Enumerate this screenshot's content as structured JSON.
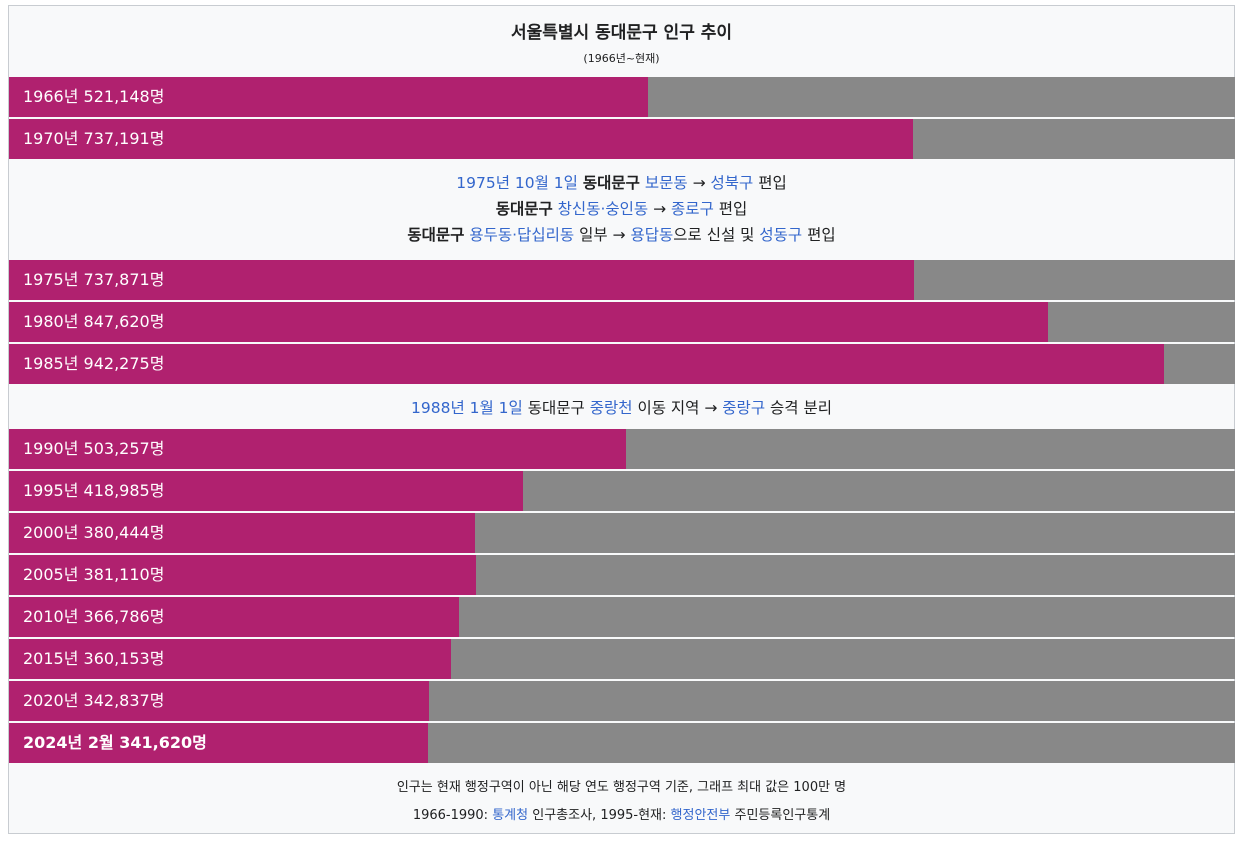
{
  "title": "서울특별시 동대문구 인구 추이",
  "subtitle": "(1966년~현재)",
  "chart_data": {
    "type": "bar",
    "orientation": "horizontal",
    "title": "서울특별시 동대문구 인구 추이",
    "subtitle": "(1966년~현재)",
    "xlim": [
      0,
      1000000
    ],
    "colors": {
      "bar": "#b0216f",
      "track": "#888888"
    },
    "categories": [
      "1966년",
      "1970년",
      "1975년",
      "1980년",
      "1985년",
      "1990년",
      "1995년",
      "2000년",
      "2005년",
      "2010년",
      "2015년",
      "2020년",
      "2024년 2월"
    ],
    "values": [
      521148,
      737191,
      737871,
      847620,
      942275,
      503257,
      418985,
      380444,
      381110,
      366786,
      360153,
      342837,
      341620
    ],
    "labels": [
      "1966년 521,148명",
      "1970년 737,191명",
      "1975년 737,871명",
      "1980년 847,620명",
      "1985년 942,275명",
      "1990년 503,257명",
      "1995년 418,985명",
      "2000년 380,444명",
      "2005년 381,110명",
      "2010년 366,786명",
      "2015년 360,153명",
      "2020년 342,837명",
      "2024년 2월 341,620명"
    ]
  },
  "notes": {
    "n1975": {
      "line1": {
        "date": "1975년 10월 1일",
        "district": "동대문구",
        "from": "보문동",
        "arrow": "→",
        "to": "성북구",
        "action": "편입"
      },
      "line2": {
        "district": "동대문구",
        "from": "창신동·숭인동",
        "arrow": "→",
        "to": "종로구",
        "action": "편입"
      },
      "line3": {
        "district": "동대문구",
        "from": "용두동·답십리동",
        "part": "일부",
        "arrow": "→",
        "to": "용답동",
        "mid": "으로 신설 및",
        "to2": "성동구",
        "action": "편입"
      }
    },
    "n1988": {
      "date": "1988년 1월 1일",
      "district": "동대문구",
      "area": "중랑천",
      "desc": "이동 지역",
      "arrow": "→",
      "to": "중랑구",
      "action": "승격 분리"
    }
  },
  "footer": {
    "line1": "인구는 현재 행정구역이 아닌 해당 연도 행정구역 기준, 그래프 최대 값은 100만 명",
    "line2": {
      "prefix": "1966-1990:",
      "src1": "통계청",
      "mid": "인구총조사, 1995-현재:",
      "src2": "행정안전부",
      "suffix": "주민등록인구통계"
    }
  }
}
